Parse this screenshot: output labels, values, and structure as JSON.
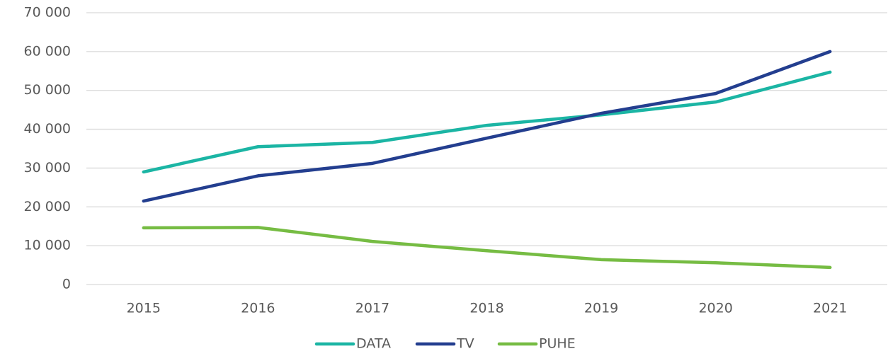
{
  "chart_data": {
    "type": "line",
    "categories": [
      "2015",
      "2016",
      "2017",
      "2018",
      "2019",
      "2020",
      "2021"
    ],
    "series": [
      {
        "name": "DATA",
        "color": "#1bb5a4",
        "values": [
          29000,
          35500,
          36600,
          41000,
          43700,
          47000,
          54700
        ]
      },
      {
        "name": "TV",
        "color": "#233e8f",
        "values": [
          21500,
          28000,
          31200,
          37700,
          44100,
          49200,
          60000
        ]
      },
      {
        "name": "PUHE",
        "color": "#76bc43",
        "values": [
          14600,
          14700,
          11100,
          8700,
          6400,
          5600,
          4400
        ]
      }
    ],
    "ylim": [
      0,
      70000
    ],
    "yticks": [
      0,
      {
        "value": 10000,
        "label": "10 000"
      },
      {
        "value": 20000,
        "label": "20 000"
      },
      {
        "value": 30000,
        "label": "30 000"
      },
      {
        "value": 40000,
        "label": "40 000"
      },
      {
        "value": 50000,
        "label": "50 000"
      },
      {
        "value": 60000,
        "label": "60 000"
      },
      {
        "value": 70000,
        "label": "70 000"
      }
    ],
    "grid": true,
    "legend": "bottom"
  }
}
